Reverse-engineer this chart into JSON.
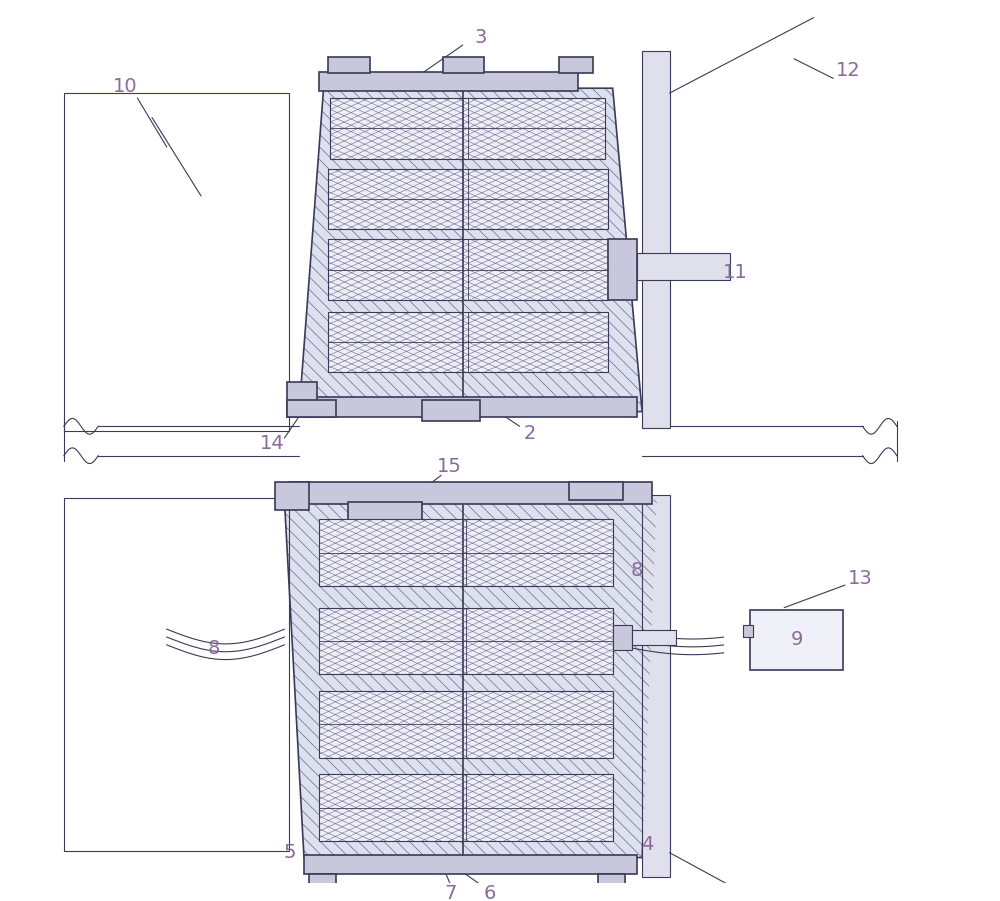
{
  "background_color": "#ffffff",
  "line_color": "#3a3a5a",
  "label_color": "#8a6a9a",
  "fig_width": 10.0,
  "fig_height": 9.01,
  "hatch_fill_color": "#dde0ee",
  "coil_fill_color": "#eeeef8",
  "cap_fill_color": "#c8c8dc"
}
